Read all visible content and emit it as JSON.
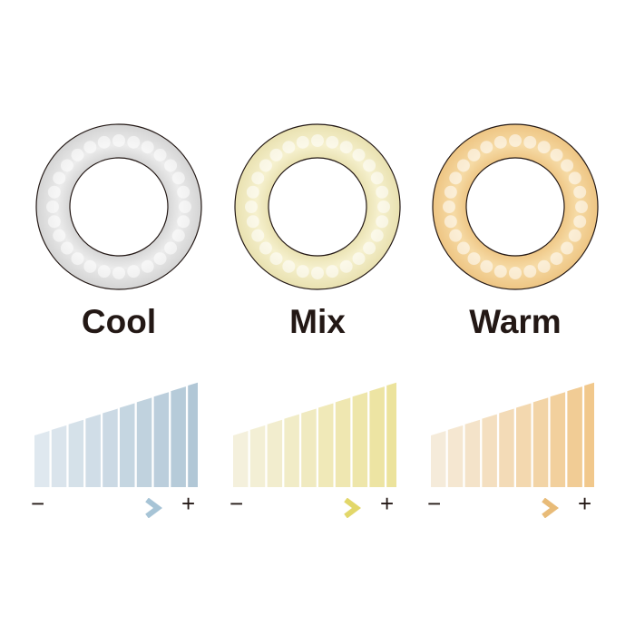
{
  "modes": [
    {
      "label": "Cool",
      "ring_color": "#ececec",
      "ring_edge": "#d4d4d4",
      "bar_from": "#dfe8ef",
      "bar_to": "#b1c7d6",
      "arrow_color": "#a7c4d6"
    },
    {
      "label": "Mix",
      "ring_color": "#f6f1cf",
      "ring_edge": "#e9e1b0",
      "bar_from": "#f4f0dc",
      "bar_to": "#ece39c",
      "arrow_color": "#e2d76a"
    },
    {
      "label": "Warm",
      "ring_color": "#f6dba6",
      "ring_edge": "#eec583",
      "bar_from": "#f5ebda",
      "bar_to": "#f1c88c",
      "arrow_color": "#e8bb78"
    }
  ],
  "scale": {
    "minus": "−",
    "plus": "+",
    "levels": 10
  }
}
